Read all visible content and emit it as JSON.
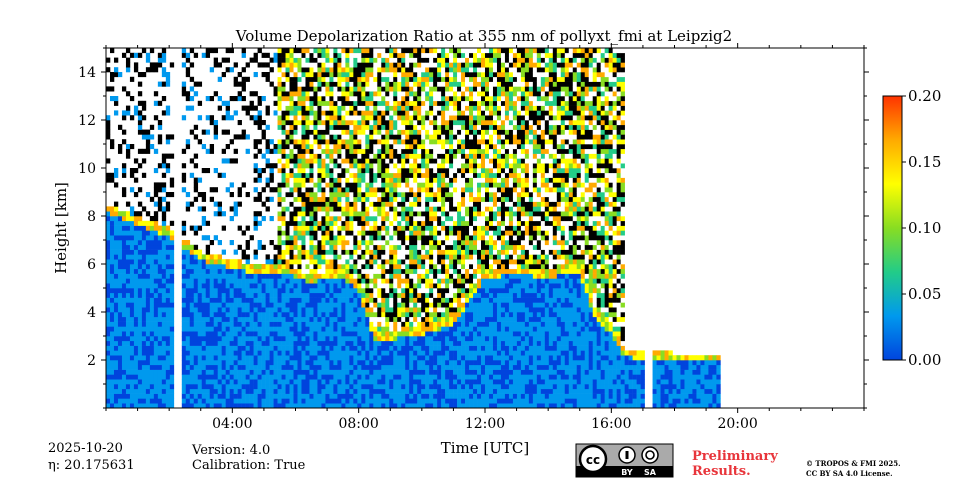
{
  "chart_data": {
    "type": "heatmap",
    "title": "Volume Depolarization Ratio at 355 nm of pollyxt_fmi at Leipzig2",
    "xlabel": "Time [UTC]",
    "ylabel": "Height [km]",
    "xlim": [
      0,
      24
    ],
    "ylim": [
      0,
      15
    ],
    "x_ticks": [
      "04:00",
      "08:00",
      "12:00",
      "16:00",
      "20:00"
    ],
    "x_tick_values": [
      4,
      8,
      12,
      16,
      20
    ],
    "y_ticks": [
      "2",
      "4",
      "6",
      "8",
      "10",
      "12",
      "14"
    ],
    "y_tick_values": [
      2,
      4,
      6,
      8,
      10,
      12,
      14
    ],
    "colorbar": {
      "min": 0,
      "max": 0.2,
      "ticks": [
        "0.00",
        "0.05",
        "0.10",
        "0.15",
        "0.20"
      ],
      "tick_values": [
        0,
        0.05,
        0.1,
        0.15,
        0.2
      ],
      "colormap": [
        "#0044dd",
        "#0099ee",
        "#22cc88",
        "#88dd22",
        "#ffff00",
        "#ffaa00",
        "#ff3300"
      ]
    },
    "profile": {
      "time_hours": [
        0,
        1,
        2,
        3,
        4,
        4.5,
        5,
        5.5,
        6,
        6.5,
        7,
        7.5,
        8,
        8.5,
        9,
        10,
        11,
        12,
        13,
        14,
        15,
        15.5,
        16,
        16.4,
        17,
        18,
        19,
        19.5
      ],
      "layer_top_km": [
        8.5,
        8,
        7.5,
        6.5,
        6.2,
        6,
        6,
        6,
        5.8,
        5.6,
        5.7,
        5.8,
        5.2,
        3.2,
        3.2,
        3.4,
        3.8,
        5.8,
        5.9,
        5.8,
        6,
        4,
        3.5,
        2.5,
        2.4,
        2.3,
        2.3,
        2.3
      ]
    },
    "data_gaps_hours": [
      [
        2.15,
        2.35
      ],
      [
        17.1,
        17.3
      ],
      [
        19.5,
        24
      ]
    ]
  },
  "footer": {
    "date": "2025-10-20",
    "eta": "η: 20.175631",
    "version": "Version: 4.0",
    "calibration": "Calibration: True",
    "preliminary_line1": "Preliminary",
    "preliminary_line2": "Results.",
    "copyright_line1": "© TROPOS & FMI 2025.",
    "copyright_line2": "CC BY SA 4.0 License.",
    "license_badge": [
      "cc",
      "BY",
      "SA"
    ]
  }
}
